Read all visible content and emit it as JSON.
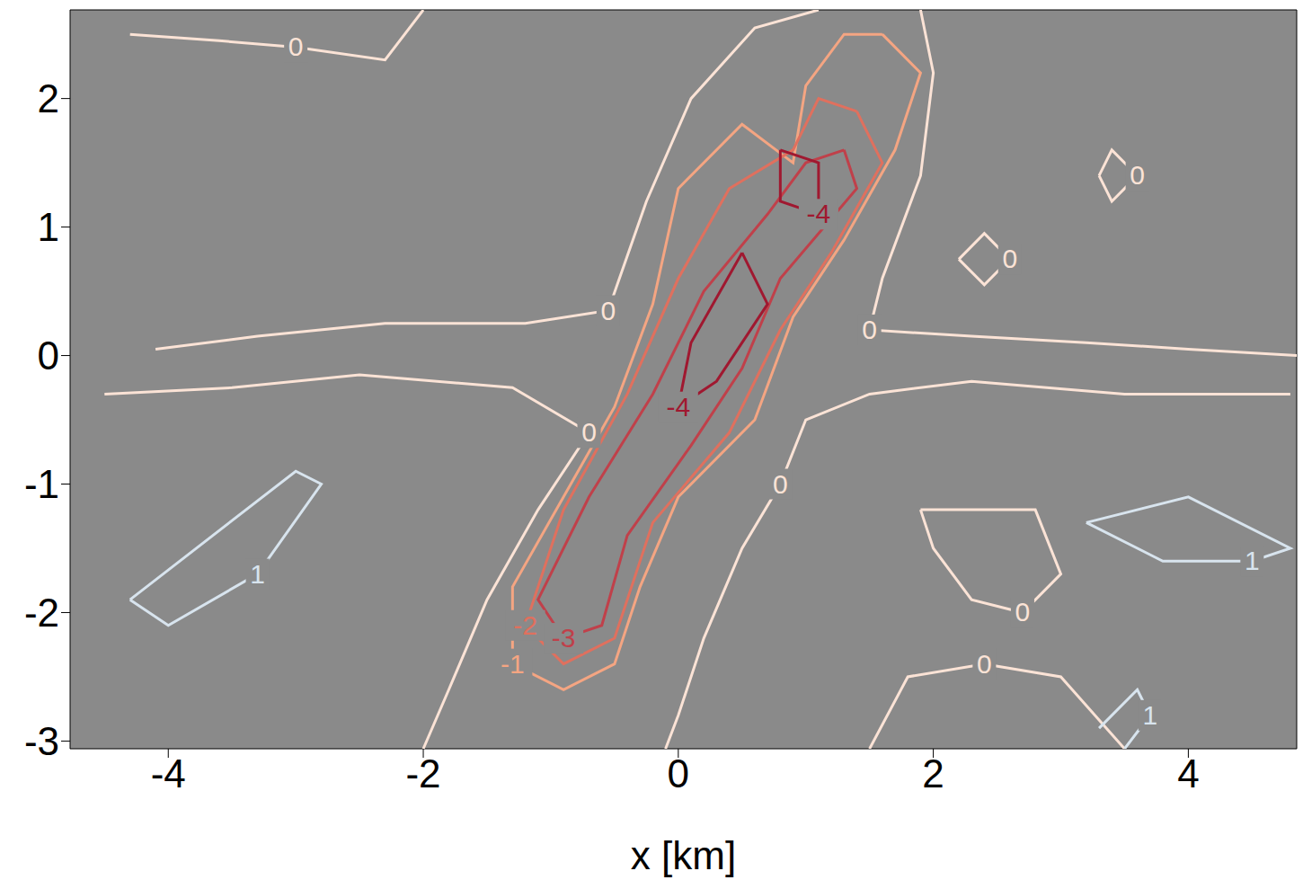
{
  "chart_data": {
    "type": "contour",
    "x_label": "x [km]",
    "xlim": [
      -4.77,
      4.85
    ],
    "ylim": [
      -3.06,
      2.69
    ],
    "xticks": [
      -4,
      -2,
      0,
      2,
      4
    ],
    "yticks": [
      -3,
      -2,
      -1,
      0,
      1,
      2
    ],
    "contours": [
      {
        "level": 0,
        "color": "#fbe3d6",
        "points": [
          [
            -4.1,
            0.05
          ],
          [
            -3.3,
            0.15
          ],
          [
            -2.3,
            0.25
          ],
          [
            -1.2,
            0.25
          ],
          [
            -0.55,
            0.35
          ],
          [
            -0.25,
            1.2
          ],
          [
            0.1,
            2.0
          ],
          [
            0.6,
            2.55
          ],
          [
            1.1,
            2.69
          ]
        ]
      },
      {
        "level": 0,
        "color": "#fbe3d6",
        "points": [
          [
            1.9,
            2.69
          ],
          [
            2.0,
            2.2
          ],
          [
            1.9,
            1.4
          ],
          [
            1.6,
            0.6
          ],
          [
            1.5,
            0.2
          ],
          [
            2.3,
            0.15
          ],
          [
            3.2,
            0.1
          ],
          [
            4.0,
            0.05
          ],
          [
            4.85,
            0.0
          ]
        ]
      },
      {
        "level": 0,
        "color": "#fbe3d6",
        "points": [
          [
            -4.5,
            -0.3
          ],
          [
            -3.5,
            -0.25
          ],
          [
            -2.5,
            -0.15
          ],
          [
            -1.3,
            -0.25
          ],
          [
            -0.7,
            -0.6
          ],
          [
            -1.1,
            -1.2
          ],
          [
            -1.5,
            -1.9
          ],
          [
            -1.8,
            -2.6
          ],
          [
            -2.0,
            -3.06
          ]
        ]
      },
      {
        "level": 0,
        "color": "#fbe3d6",
        "points": [
          [
            4.8,
            -0.3
          ],
          [
            3.5,
            -0.3
          ],
          [
            2.3,
            -0.2
          ],
          [
            1.5,
            -0.3
          ],
          [
            1.0,
            -0.5
          ],
          [
            0.8,
            -1.0
          ],
          [
            0.5,
            -1.5
          ],
          [
            0.2,
            -2.2
          ],
          [
            0.0,
            -2.8
          ],
          [
            -0.1,
            -3.06
          ]
        ]
      },
      {
        "level": 0,
        "color": "#fbe3d6",
        "points": [
          [
            -4.3,
            2.5
          ],
          [
            -3.6,
            2.45
          ],
          [
            -3.0,
            2.4
          ],
          [
            -2.3,
            2.3
          ],
          [
            -2.0,
            2.69
          ]
        ]
      },
      {
        "level": 0,
        "color": "#fbe3d6",
        "points": [
          [
            2.2,
            0.75
          ],
          [
            2.4,
            0.95
          ],
          [
            2.6,
            0.75
          ],
          [
            2.4,
            0.55
          ],
          [
            2.2,
            0.75
          ]
        ]
      },
      {
        "level": 0,
        "color": "#fbe3d6",
        "points": [
          [
            3.3,
            1.4
          ],
          [
            3.4,
            1.6
          ],
          [
            3.6,
            1.4
          ],
          [
            3.4,
            1.2
          ],
          [
            3.3,
            1.4
          ]
        ]
      },
      {
        "level": 0,
        "color": "#fbe3d6",
        "points": [
          [
            1.9,
            -1.2
          ],
          [
            2.8,
            -1.2
          ],
          [
            3.0,
            -1.7
          ],
          [
            2.7,
            -2.0
          ],
          [
            2.3,
            -1.9
          ],
          [
            2.0,
            -1.5
          ],
          [
            1.9,
            -1.2
          ]
        ]
      },
      {
        "level": 0,
        "color": "#fbe3d6",
        "points": [
          [
            1.5,
            -3.06
          ],
          [
            1.8,
            -2.5
          ],
          [
            2.4,
            -2.4
          ],
          [
            3.0,
            -2.5
          ],
          [
            3.5,
            -3.06
          ]
        ]
      },
      {
        "level": -1,
        "color": "#f4a582",
        "points": [
          [
            1.6,
            2.5
          ],
          [
            1.9,
            2.2
          ],
          [
            1.7,
            1.6
          ],
          [
            1.3,
            0.9
          ],
          [
            0.9,
            0.3
          ],
          [
            0.6,
            -0.5
          ],
          [
            0.0,
            -1.1
          ],
          [
            -0.3,
            -1.8
          ],
          [
            -0.5,
            -2.4
          ],
          [
            -0.9,
            -2.6
          ],
          [
            -1.3,
            -2.4
          ],
          [
            -1.3,
            -1.8
          ],
          [
            -0.9,
            -1.1
          ],
          [
            -0.5,
            -0.4
          ],
          [
            -0.2,
            0.4
          ],
          [
            0.0,
            1.3
          ],
          [
            0.5,
            1.8
          ],
          [
            0.9,
            1.5
          ],
          [
            1.0,
            2.1
          ],
          [
            1.3,
            2.5
          ],
          [
            1.6,
            2.5
          ]
        ]
      },
      {
        "level": -2,
        "color": "#e0705e",
        "points": [
          [
            1.4,
            1.9
          ],
          [
            1.6,
            1.5
          ],
          [
            1.2,
            0.8
          ],
          [
            0.8,
            0.2
          ],
          [
            0.4,
            -0.6
          ],
          [
            -0.2,
            -1.3
          ],
          [
            -0.5,
            -2.2
          ],
          [
            -0.9,
            -2.4
          ],
          [
            -1.2,
            -2.1
          ],
          [
            -0.9,
            -1.2
          ],
          [
            -0.4,
            -0.3
          ],
          [
            0.0,
            0.6
          ],
          [
            0.4,
            1.3
          ],
          [
            0.9,
            1.6
          ],
          [
            1.1,
            2.0
          ],
          [
            1.4,
            1.9
          ]
        ]
      },
      {
        "level": -3,
        "color": "#c0404a",
        "points": [
          [
            1.3,
            1.6
          ],
          [
            1.4,
            1.3
          ],
          [
            0.8,
            0.6
          ],
          [
            0.5,
            -0.1
          ],
          [
            0.1,
            -0.7
          ],
          [
            -0.4,
            -1.4
          ],
          [
            -0.6,
            -2.1
          ],
          [
            -0.9,
            -2.2
          ],
          [
            -1.1,
            -1.9
          ],
          [
            -0.7,
            -1.1
          ],
          [
            -0.2,
            -0.3
          ],
          [
            0.2,
            0.5
          ],
          [
            0.7,
            1.1
          ],
          [
            1.0,
            1.5
          ],
          [
            1.3,
            1.6
          ]
        ]
      },
      {
        "level": -4,
        "color": "#a01830",
        "points": [
          [
            0.8,
            1.6
          ],
          [
            1.1,
            1.5
          ],
          [
            1.1,
            1.1
          ],
          [
            0.8,
            1.2
          ],
          [
            0.8,
            1.6
          ]
        ]
      },
      {
        "level": -4,
        "color": "#a01830",
        "points": [
          [
            0.5,
            0.8
          ],
          [
            0.7,
            0.4
          ],
          [
            0.3,
            -0.2
          ],
          [
            0.0,
            -0.4
          ],
          [
            0.1,
            0.1
          ],
          [
            0.5,
            0.8
          ]
        ]
      },
      {
        "level": 1,
        "color": "#d8e4ee",
        "points": [
          [
            -4.3,
            -1.9
          ],
          [
            -3.0,
            -0.9
          ],
          [
            -2.8,
            -1.0
          ],
          [
            -3.3,
            -1.7
          ],
          [
            -4.0,
            -2.1
          ],
          [
            -4.3,
            -1.9
          ]
        ]
      },
      {
        "level": 1,
        "color": "#d8e4ee",
        "points": [
          [
            3.2,
            -1.3
          ],
          [
            4.0,
            -1.1
          ],
          [
            4.8,
            -1.5
          ],
          [
            4.5,
            -1.6
          ],
          [
            3.8,
            -1.6
          ],
          [
            3.2,
            -1.3
          ]
        ]
      },
      {
        "level": 1,
        "color": "#d8e4ee",
        "points": [
          [
            3.3,
            -2.9
          ],
          [
            3.6,
            -2.6
          ],
          [
            3.7,
            -2.8
          ],
          [
            3.5,
            -3.06
          ]
        ]
      }
    ]
  }
}
